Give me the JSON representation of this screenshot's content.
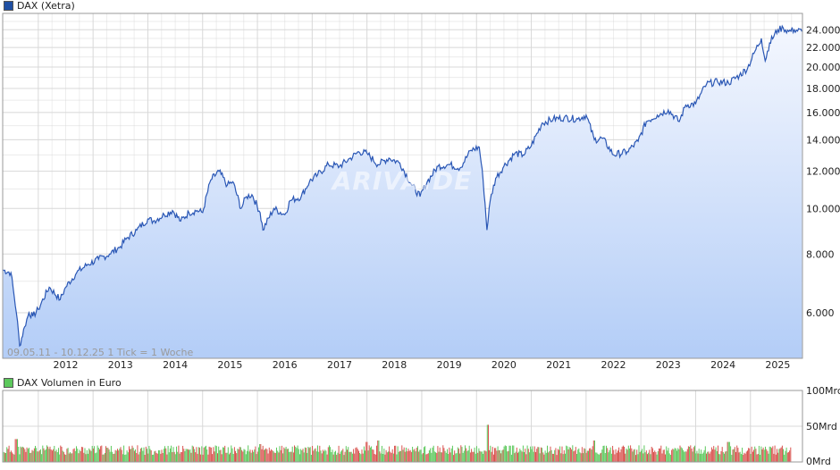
{
  "legend_main": {
    "label": "DAX (Xetra)",
    "color": "#1f4fa3"
  },
  "legend_volume": {
    "label": "DAX Volumen in Euro",
    "color": "#5cc85c"
  },
  "info_text": "09.05.11 - 10.12.25   1 Tick = 1 Woche",
  "watermark": "ARIVA.DE",
  "colors": {
    "line": "#2a57b5",
    "area_top": "#f4f7fe",
    "area_bottom": "#b3cdf7",
    "vol_up": "#5cc85c",
    "vol_down": "#d9534f"
  },
  "chart_data": [
    {
      "type": "area",
      "scale": "log",
      "series": [
        {
          "name": "DAX (Xetra)",
          "x": [
            2011.35,
            2011.5,
            2011.6,
            2011.66,
            2011.75,
            2011.83,
            2011.9,
            2012.0,
            2012.2,
            2012.4,
            2012.5,
            2012.7,
            2012.9,
            2013.1,
            2013.3,
            2013.5,
            2013.6,
            2013.8,
            2014.0,
            2014.1,
            2014.3,
            2014.45,
            2014.6,
            2014.75,
            2014.9,
            2015.0,
            2015.15,
            2015.3,
            2015.45,
            2015.55,
            2015.7,
            2015.8,
            2015.9,
            2016.05,
            2016.1,
            2016.3,
            2016.5,
            2016.6,
            2016.8,
            2016.95,
            2017.1,
            2017.3,
            2017.5,
            2017.7,
            2017.85,
            2018.0,
            2018.2,
            2018.4,
            2018.6,
            2018.8,
            2018.97,
            2019.1,
            2019.3,
            2019.5,
            2019.7,
            2019.9,
            2020.05,
            2020.12,
            2020.19,
            2020.25,
            2020.35,
            2020.5,
            2020.7,
            2020.85,
            2021.0,
            2021.2,
            2021.4,
            2021.6,
            2021.85,
            2022.0,
            2022.15,
            2022.3,
            2022.5,
            2022.75,
            2022.95,
            2023.1,
            2023.3,
            2023.5,
            2023.7,
            2023.82,
            2024.0,
            2024.2,
            2024.4,
            2024.6,
            2024.8,
            2024.95,
            2025.1,
            2025.2,
            2025.27,
            2025.35,
            2025.5,
            2025.6,
            2025.7,
            2025.8,
            2025.94
          ],
          "values": [
            7400,
            7300,
            6000,
            5100,
            5600,
            6000,
            5900,
            6100,
            6800,
            6400,
            6800,
            7300,
            7600,
            7800,
            8000,
            8300,
            8600,
            9000,
            9500,
            9400,
            9700,
            9900,
            9400,
            9800,
            9900,
            9800,
            11500,
            12000,
            11200,
            11400,
            10000,
            10600,
            10700,
            9800,
            9000,
            10000,
            9700,
            10400,
            10600,
            11400,
            11800,
            12400,
            12300,
            12800,
            13200,
            13100,
            12400,
            12800,
            12500,
            11300,
            10600,
            11400,
            12300,
            12400,
            12200,
            13300,
            13500,
            11500,
            9000,
            10400,
            11600,
            12300,
            13100,
            13000,
            13600,
            15200,
            15500,
            15600,
            15500,
            15800,
            14000,
            14100,
            13000,
            13200,
            13900,
            15300,
            15800,
            16200,
            15300,
            16600,
            16700,
            18400,
            18600,
            18500,
            19200,
            19900,
            21800,
            23000,
            20600,
            22500,
            24000,
            24200,
            23800,
            24000,
            23800
          ]
        }
      ],
      "y_ticks": [
        "6.000",
        "8.000",
        "10.000",
        "12.000",
        "14.000",
        "16.000",
        "18.000",
        "20.000",
        "22.000",
        "24.000"
      ],
      "y_tick_values": [
        6000,
        8000,
        10000,
        12000,
        14000,
        16000,
        18000,
        20000,
        22000,
        24000
      ],
      "ylim": [
        4800,
        26000
      ],
      "x_ticks": [
        "2012",
        "2013",
        "2014",
        "2015",
        "2016",
        "2017",
        "2018",
        "2019",
        "2020",
        "2021",
        "2022",
        "2023",
        "2024",
        "2025"
      ],
      "xlim": [
        2011.35,
        2025.95
      ],
      "grid": true
    },
    {
      "type": "bar",
      "series": [
        {
          "name": "DAX Volumen in Euro",
          "unit": "Mrd"
        }
      ],
      "y_ticks": [
        "0Mrd",
        "50Mrd",
        "100Mrd"
      ],
      "y_tick_values": [
        0,
        50,
        100
      ],
      "ylim": [
        0,
        100
      ],
      "typical_volume_mrd": 18,
      "spikes": [
        {
          "x": 2011.6,
          "value": 32
        },
        {
          "x": 2016.05,
          "value": 25
        },
        {
          "x": 2018.0,
          "value": 28
        },
        {
          "x": 2018.2,
          "value": 30
        },
        {
          "x": 2020.2,
          "value": 52
        },
        {
          "x": 2022.15,
          "value": 30
        },
        {
          "x": 2024.6,
          "value": 28
        }
      ]
    }
  ]
}
